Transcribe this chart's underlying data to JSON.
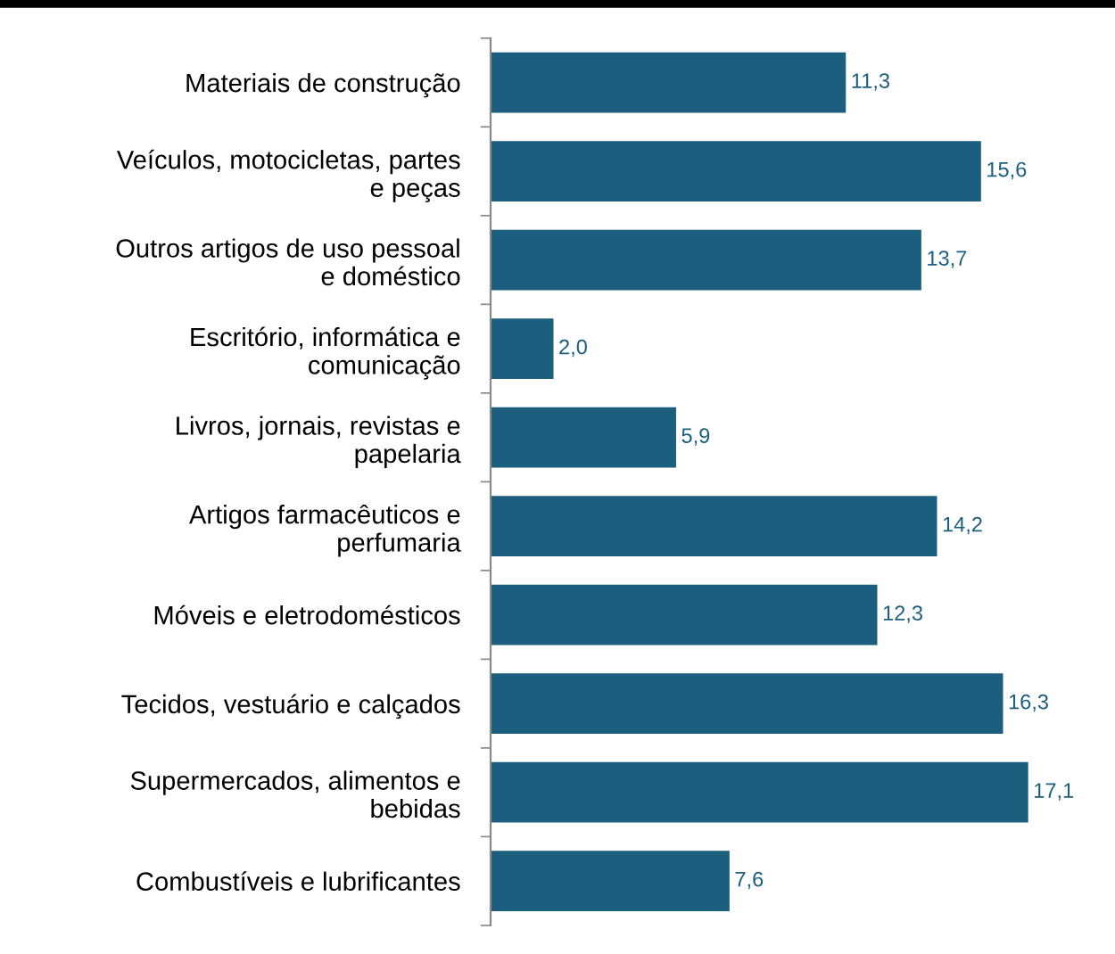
{
  "chart_data": {
    "type": "bar",
    "orientation": "horizontal",
    "categories": [
      "Materiais de construção",
      "Veículos, motocicletas, partes\ne peças",
      "Outros artigos de uso pessoal\ne doméstico",
      "Escritório, informática e\ncomunicação",
      "Livros, jornais, revistas e\npapelaria",
      "Artigos farmacêuticos e\nperfumaria",
      "Móveis e eletrodomésticos",
      "Tecidos, vestuário e calçados",
      "Supermercados, alimentos e\nbebidas",
      "Combustíveis e lubrificantes"
    ],
    "values": [
      11.3,
      15.6,
      13.7,
      2.0,
      5.9,
      14.2,
      12.3,
      16.3,
      17.1,
      7.6
    ],
    "value_labels": [
      "11,3",
      "15,6",
      "13,7",
      "2,0",
      "5,9",
      "14,2",
      "12,3",
      "16,3",
      "17,1",
      "7,6"
    ],
    "color": "#1b5e7e",
    "grid": false,
    "legend": false,
    "tick_labels": "y"
  }
}
